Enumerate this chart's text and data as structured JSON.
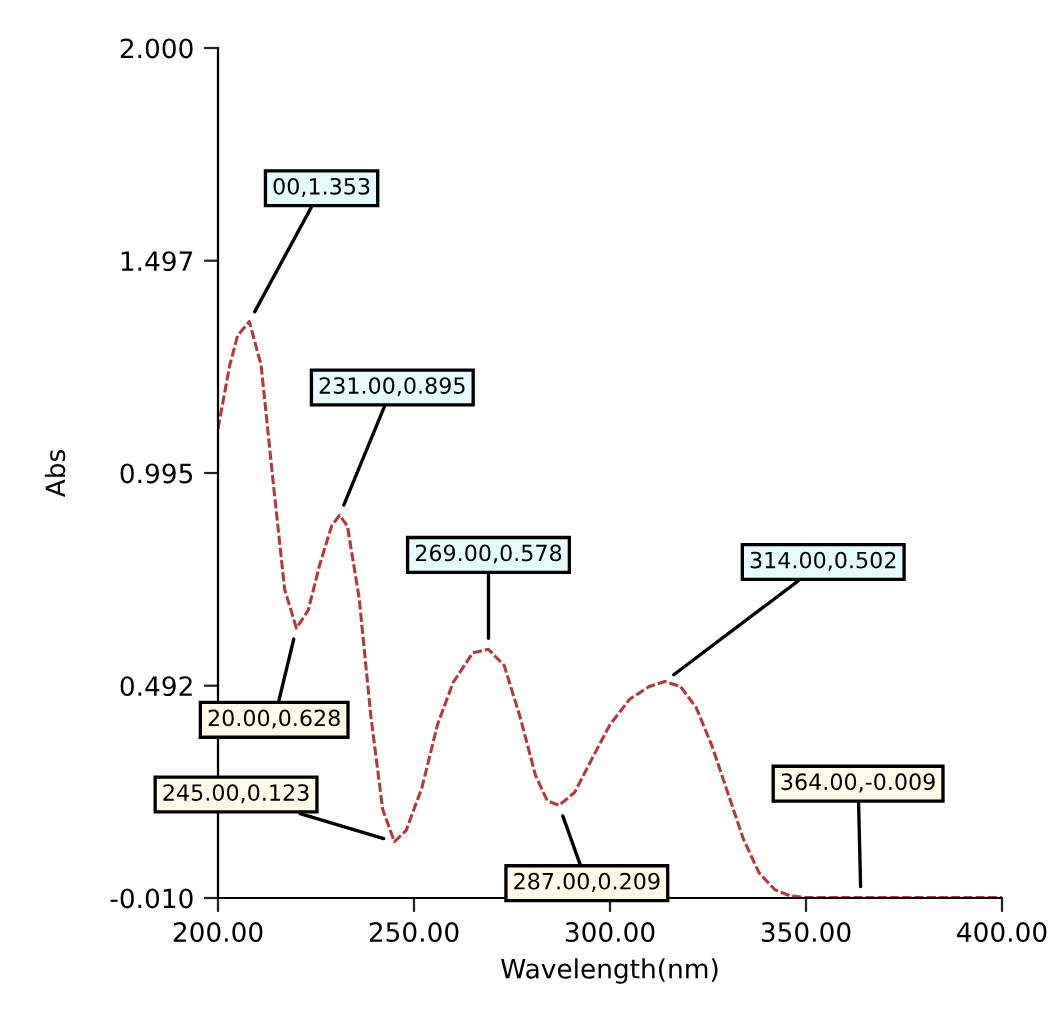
{
  "chart_data": {
    "type": "line",
    "xlabel": "Wavelength(nm)",
    "ylabel": "Abs",
    "x": [
      200,
      203,
      205,
      208,
      211,
      214,
      217,
      220,
      223,
      226,
      229,
      231,
      233,
      236,
      239,
      242,
      245,
      248,
      252,
      256,
      260,
      265,
      269,
      273,
      277,
      281,
      284,
      287,
      291,
      296,
      300,
      305,
      310,
      314,
      318,
      322,
      326,
      330,
      334,
      338,
      342,
      346,
      350,
      364,
      380,
      400
    ],
    "series": [
      {
        "color": "#b03a3a",
        "values": [
          1.1,
          1.25,
          1.32,
          1.353,
          1.25,
          0.98,
          0.72,
          0.628,
          0.67,
          0.78,
          0.87,
          0.895,
          0.87,
          0.7,
          0.42,
          0.2,
          0.123,
          0.15,
          0.25,
          0.4,
          0.5,
          0.57,
          0.578,
          0.54,
          0.42,
          0.28,
          0.22,
          0.209,
          0.24,
          0.33,
          0.4,
          0.46,
          0.49,
          0.502,
          0.49,
          0.44,
          0.35,
          0.24,
          0.13,
          0.05,
          0.01,
          -0.005,
          -0.009,
          -0.009,
          -0.009,
          -0.009
        ]
      }
    ],
    "xlim": [
      200,
      400
    ],
    "ylim": [
      -0.01,
      2.0
    ],
    "xticks": [
      {
        "value": 200,
        "label": "200.00"
      },
      {
        "value": 250,
        "label": "250.00"
      },
      {
        "value": 300,
        "label": "300.00"
      },
      {
        "value": 350,
        "label": "350.00"
      },
      {
        "value": 400,
        "label": "400.00"
      }
    ],
    "yticks": [
      {
        "value": -0.01,
        "label": "-0.010"
      },
      {
        "value": 0.492,
        "label": "0.492"
      },
      {
        "value": 0.995,
        "label": "0.995"
      },
      {
        "value": 1.497,
        "label": "1.497"
      },
      {
        "value": 2.0,
        "label": "2.000"
      }
    ],
    "grid": false,
    "marker": "none",
    "line_style": "dashed",
    "annotations": [
      {
        "text": "00,1.353",
        "x": 208,
        "y": 1.353
      },
      {
        "text": "231.00,0.895",
        "x": 231,
        "y": 0.895
      },
      {
        "text": "269.00,0.578",
        "x": 269,
        "y": 0.578
      },
      {
        "text": "314.00,0.502",
        "x": 314,
        "y": 0.502
      },
      {
        "text": "20.00,0.628",
        "x": 220,
        "y": 0.628
      },
      {
        "text": "245.00,0.123",
        "x": 245,
        "y": 0.123
      },
      {
        "text": "287.00,0.209",
        "x": 287,
        "y": 0.209
      },
      {
        "text": "364.00,-0.009",
        "x": 364,
        "y": -0.009
      }
    ]
  }
}
